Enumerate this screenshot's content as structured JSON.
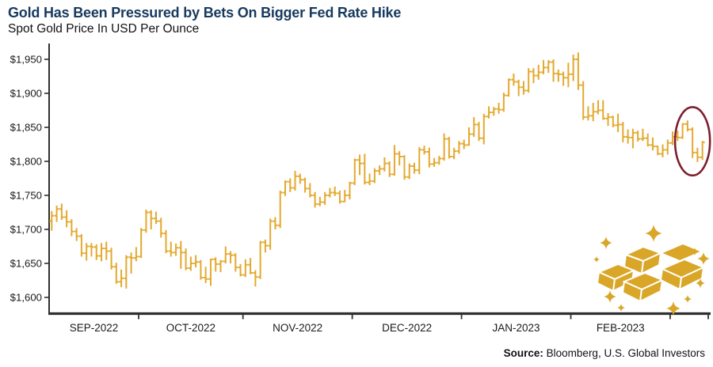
{
  "header": {
    "title": "Gold Has Been Pressured by Bets On Bigger Fed Rate Hike",
    "subtitle": "Spot Gold Price In USD Per Ounce"
  },
  "source": {
    "label": "Source:",
    "text": " Bloomberg, U.S. Global Investors"
  },
  "colors": {
    "title": "#173A5E",
    "bars": "#E4A92F",
    "icon_gold": "#D9A627",
    "annotation": "#7D1F2E",
    "axis": "#2F2F2F",
    "text": "#1A1A1A"
  },
  "icons": {
    "gold_bars": "gold-ingot-pile-with-sparkles",
    "annotation_shape": "ellipse-highlight"
  },
  "chart_data": {
    "type": "ohlc",
    "title": "Gold Has Been Pressured by Bets On Bigger Fed Rate Hike",
    "subtitle": "Spot Gold Price In USD Per Ounce",
    "unit": "USD per ounce",
    "grid": false,
    "legend": "none",
    "ylim": [
      1585,
      1975
    ],
    "y_ticks": [
      1600,
      1650,
      1700,
      1750,
      1800,
      1850,
      1900,
      1950
    ],
    "y_tick_labels": [
      "$1,600",
      "$1,650",
      "$1,700",
      "$1,750",
      "$1,800",
      "$1,850",
      "$1,900",
      "$1,950"
    ],
    "x_tick_labels": [
      "SEP-2022",
      "OCT-2022",
      "NOV-2022",
      "DEC-2022",
      "JAN-2023",
      "FEB-2023"
    ],
    "month_start_indices": [
      18,
      39,
      61,
      83,
      105,
      125
    ],
    "annotation": {
      "shape": "ellipse",
      "bar_range": [
        127,
        131
      ],
      "note": "recent drop circled"
    },
    "bars_format": [
      "open",
      "high",
      "low",
      "close"
    ],
    "bars": [
      [
        1712,
        1727,
        1698,
        1720
      ],
      [
        1720,
        1735,
        1711,
        1730
      ],
      [
        1730,
        1738,
        1714,
        1718
      ],
      [
        1718,
        1728,
        1703,
        1711
      ],
      [
        1711,
        1715,
        1690,
        1697
      ],
      [
        1697,
        1702,
        1683,
        1690
      ],
      [
        1690,
        1693,
        1660,
        1665
      ],
      [
        1665,
        1680,
        1654,
        1675
      ],
      [
        1675,
        1680,
        1660,
        1674
      ],
      [
        1674,
        1678,
        1655,
        1661
      ],
      [
        1661,
        1680,
        1653,
        1672
      ],
      [
        1672,
        1682,
        1655,
        1668
      ],
      [
        1668,
        1673,
        1641,
        1645
      ],
      [
        1645,
        1651,
        1620,
        1623
      ],
      [
        1623,
        1641,
        1615,
        1628
      ],
      [
        1628,
        1662,
        1613,
        1659
      ],
      [
        1659,
        1666,
        1635,
        1658
      ],
      [
        1658,
        1674,
        1653,
        1660
      ],
      [
        1660,
        1702,
        1658,
        1699
      ],
      [
        1699,
        1729,
        1695,
        1725
      ],
      [
        1725,
        1728,
        1700,
        1716
      ],
      [
        1716,
        1726,
        1708,
        1712
      ],
      [
        1712,
        1717,
        1688,
        1694
      ],
      [
        1694,
        1699,
        1665,
        1668
      ],
      [
        1668,
        1682,
        1660,
        1666
      ],
      [
        1666,
        1679,
        1661,
        1673
      ],
      [
        1673,
        1683,
        1642,
        1666
      ],
      [
        1666,
        1672,
        1640,
        1643
      ],
      [
        1643,
        1660,
        1639,
        1650
      ],
      [
        1650,
        1662,
        1644,
        1652
      ],
      [
        1652,
        1655,
        1626,
        1629
      ],
      [
        1629,
        1645,
        1621,
        1627
      ],
      [
        1627,
        1657,
        1617,
        1656
      ],
      [
        1656,
        1659,
        1638,
        1649
      ],
      [
        1649,
        1655,
        1637,
        1653
      ],
      [
        1653,
        1675,
        1650,
        1664
      ],
      [
        1664,
        1668,
        1650,
        1662
      ],
      [
        1662,
        1665,
        1638,
        1644
      ],
      [
        1644,
        1649,
        1631,
        1633
      ],
      [
        1633,
        1656,
        1630,
        1648
      ],
      [
        1648,
        1658,
        1634,
        1636
      ],
      [
        1636,
        1640,
        1616,
        1630
      ],
      [
        1630,
        1683,
        1627,
        1681
      ],
      [
        1681,
        1685,
        1666,
        1676
      ],
      [
        1676,
        1716,
        1670,
        1712
      ],
      [
        1712,
        1718,
        1700,
        1706
      ],
      [
        1706,
        1757,
        1702,
        1754
      ],
      [
        1754,
        1772,
        1749,
        1770
      ],
      [
        1770,
        1775,
        1755,
        1761
      ],
      [
        1761,
        1786,
        1757,
        1778
      ],
      [
        1778,
        1782,
        1767,
        1773
      ],
      [
        1773,
        1776,
        1754,
        1760
      ],
      [
        1760,
        1768,
        1747,
        1750
      ],
      [
        1750,
        1755,
        1732,
        1737
      ],
      [
        1737,
        1748,
        1734,
        1740
      ],
      [
        1740,
        1755,
        1736,
        1750
      ],
      [
        1750,
        1761,
        1747,
        1754
      ],
      [
        1754,
        1763,
        1749,
        1753
      ],
      [
        1753,
        1757,
        1738,
        1741
      ],
      [
        1741,
        1758,
        1740,
        1750
      ],
      [
        1750,
        1770,
        1744,
        1768
      ],
      [
        1768,
        1804,
        1765,
        1802
      ],
      [
        1802,
        1810,
        1780,
        1797
      ],
      [
        1797,
        1811,
        1766,
        1769
      ],
      [
        1769,
        1782,
        1765,
        1771
      ],
      [
        1771,
        1790,
        1768,
        1786
      ],
      [
        1786,
        1794,
        1780,
        1789
      ],
      [
        1789,
        1806,
        1785,
        1797
      ],
      [
        1797,
        1800,
        1777,
        1781
      ],
      [
        1781,
        1824,
        1779,
        1811
      ],
      [
        1811,
        1815,
        1794,
        1807
      ],
      [
        1807,
        1809,
        1773,
        1777
      ],
      [
        1777,
        1797,
        1774,
        1793
      ],
      [
        1793,
        1798,
        1782,
        1787
      ],
      [
        1787,
        1821,
        1781,
        1817
      ],
      [
        1817,
        1823,
        1810,
        1814
      ],
      [
        1814,
        1820,
        1791,
        1796
      ],
      [
        1796,
        1805,
        1792,
        1798
      ],
      [
        1798,
        1808,
        1795,
        1804
      ],
      [
        1804,
        1841,
        1801,
        1833
      ],
      [
        1833,
        1836,
        1804,
        1807
      ],
      [
        1807,
        1820,
        1803,
        1815
      ],
      [
        1815,
        1830,
        1811,
        1826
      ],
      [
        1826,
        1832,
        1818,
        1824
      ],
      [
        1824,
        1850,
        1823,
        1840
      ],
      [
        1840,
        1865,
        1836,
        1854
      ],
      [
        1854,
        1858,
        1830,
        1834
      ],
      [
        1834,
        1870,
        1825,
        1866
      ],
      [
        1866,
        1881,
        1863,
        1872
      ],
      [
        1872,
        1880,
        1867,
        1877
      ],
      [
        1877,
        1886,
        1870,
        1876
      ],
      [
        1876,
        1901,
        1873,
        1897
      ],
      [
        1897,
        1922,
        1895,
        1920
      ],
      [
        1920,
        1929,
        1911,
        1917
      ],
      [
        1917,
        1920,
        1896,
        1909
      ],
      [
        1909,
        1918,
        1898,
        1904
      ],
      [
        1904,
        1937,
        1901,
        1932
      ],
      [
        1932,
        1937,
        1915,
        1926
      ],
      [
        1926,
        1942,
        1920,
        1931
      ],
      [
        1931,
        1949,
        1928,
        1938
      ],
      [
        1938,
        1949,
        1930,
        1946
      ],
      [
        1946,
        1950,
        1917,
        1929
      ],
      [
        1929,
        1935,
        1917,
        1928
      ],
      [
        1928,
        1932,
        1911,
        1923
      ],
      [
        1923,
        1945,
        1909,
        1928
      ],
      [
        1928,
        1957,
        1918,
        1950
      ],
      [
        1950,
        1960,
        1905,
        1912
      ],
      [
        1912,
        1918,
        1861,
        1865
      ],
      [
        1865,
        1881,
        1860,
        1867
      ],
      [
        1867,
        1886,
        1859,
        1873
      ],
      [
        1873,
        1890,
        1869,
        1875
      ],
      [
        1875,
        1890,
        1861,
        1863
      ],
      [
        1863,
        1871,
        1852,
        1865
      ],
      [
        1865,
        1867,
        1850,
        1853
      ],
      [
        1853,
        1870,
        1843,
        1854
      ],
      [
        1854,
        1858,
        1828,
        1836
      ],
      [
        1836,
        1847,
        1826,
        1835
      ],
      [
        1835,
        1848,
        1819,
        1842
      ],
      [
        1842,
        1845,
        1829,
        1833
      ],
      [
        1833,
        1848,
        1830,
        1834
      ],
      [
        1834,
        1841,
        1822,
        1824
      ],
      [
        1824,
        1835,
        1816,
        1822
      ],
      [
        1822,
        1823,
        1809,
        1811
      ],
      [
        1811,
        1825,
        1806,
        1817
      ],
      [
        1817,
        1832,
        1810,
        1827
      ],
      [
        1827,
        1844,
        1824,
        1836
      ],
      [
        1836,
        1845,
        1830,
        1835
      ],
      [
        1835,
        1856,
        1833,
        1855
      ],
      [
        1855,
        1860,
        1844,
        1847
      ],
      [
        1847,
        1850,
        1805,
        1813
      ],
      [
        1813,
        1820,
        1799,
        1806
      ],
      [
        1806,
        1830,
        1802,
        1828
      ]
    ]
  }
}
